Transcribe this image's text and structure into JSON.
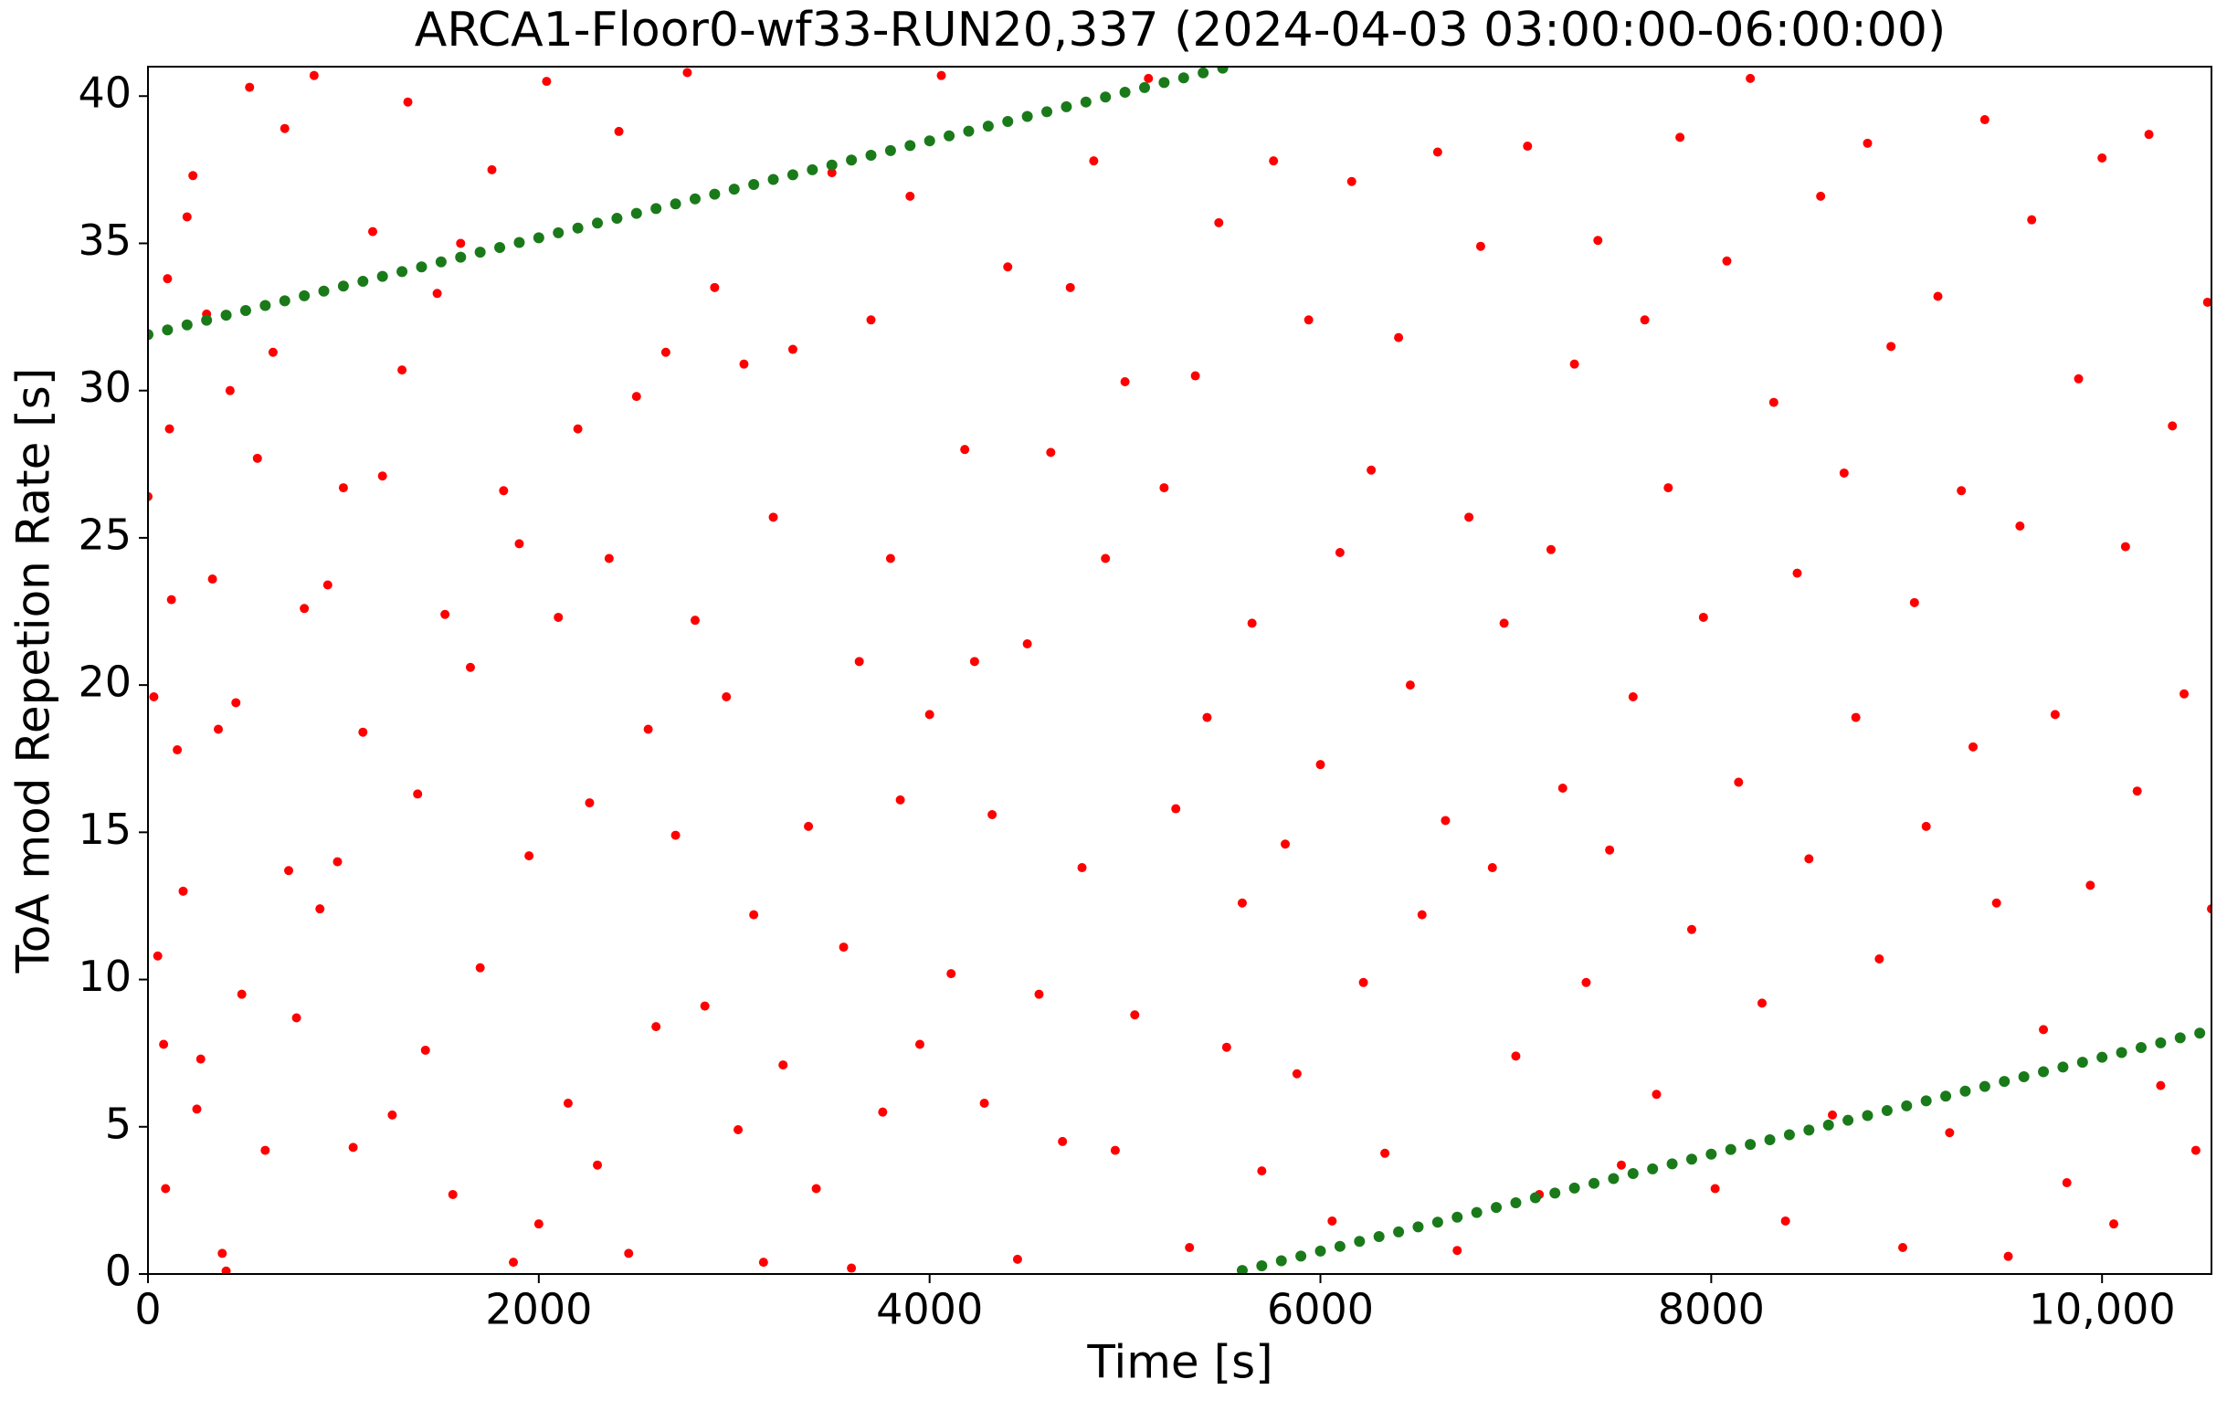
{
  "chart_data": {
    "type": "scatter",
    "title": "ARCA1-Floor0-wf33-RUN20,337 (2024-04-03 03:00:00-06:00:00)",
    "x_label": "Time [s]",
    "y_label": "ToA mod Repetion Rate [s]",
    "xlim": [
      0,
      10560
    ],
    "ylim": [
      0,
      41
    ],
    "xticks": [
      0,
      2000,
      4000,
      6000,
      8000,
      {
        "value": 10000,
        "label": "10,000"
      }
    ],
    "yticks": [
      0,
      5,
      10,
      15,
      20,
      25,
      30,
      35,
      40
    ],
    "grid": false,
    "series": [
      {
        "color": "#ff0000",
        "x": [
          0,
          30,
          50,
          80,
          90,
          100,
          110,
          120,
          150,
          180,
          200,
          230,
          250,
          270,
          300,
          330,
          360,
          380,
          400,
          420,
          450,
          480,
          520,
          560,
          600,
          640,
          700,
          720,
          760,
          800,
          850,
          880,
          920,
          970,
          1000,
          1050,
          1100,
          1150,
          1200,
          1250,
          1300,
          1330,
          1380,
          1420,
          1480,
          1520,
          1560,
          1600,
          1650,
          1700,
          1760,
          1820,
          1870,
          1900,
          1950,
          2000,
          2040,
          2100,
          2150,
          2200,
          2260,
          2300,
          2360,
          2410,
          2460,
          2500,
          2560,
          2600,
          2650,
          2700,
          2760,
          2800,
          2850,
          2900,
          2960,
          3020,
          3050,
          3100,
          3150,
          3200,
          3250,
          3300,
          3380,
          3420,
          3500,
          3560,
          3600,
          3640,
          3700,
          3760,
          3800,
          3850,
          3900,
          3950,
          4000,
          4060,
          4110,
          4180,
          4230,
          4280,
          4320,
          4400,
          4450,
          4500,
          4560,
          4620,
          4680,
          4720,
          4780,
          4840,
          4900,
          4950,
          5000,
          5050,
          5120,
          5200,
          5260,
          5330,
          5360,
          5420,
          5480,
          5520,
          5600,
          5650,
          5700,
          5760,
          5820,
          5880,
          5940,
          6000,
          6060,
          6100,
          6160,
          6220,
          6260,
          6330,
          6400,
          6460,
          6520,
          6600,
          6640,
          6700,
          6760,
          6820,
          6880,
          6940,
          7000,
          7060,
          7120,
          7180,
          7240,
          7300,
          7360,
          7420,
          7480,
          7540,
          7600,
          7660,
          7720,
          7780,
          7840,
          7900,
          7960,
          8020,
          8080,
          8140,
          8200,
          8260,
          8320,
          8380,
          8440,
          8500,
          8560,
          8620,
          8680,
          8740,
          8800,
          8860,
          8920,
          8980,
          9040,
          9100,
          9160,
          9220,
          9280,
          9340,
          9400,
          9460,
          9520,
          9580,
          9640,
          9700,
          9760,
          9820,
          9880,
          9940,
          10000,
          10060,
          10120,
          10180,
          10240,
          10300,
          10360,
          10420,
          10480,
          10540,
          10560
        ],
        "values": [
          26.4,
          19.6,
          10.8,
          7.8,
          2.9,
          33.8,
          28.7,
          22.9,
          17.8,
          13,
          35.9,
          37.3,
          5.6,
          7.3,
          32.6,
          23.6,
          18.5,
          0.7,
          0.1,
          30,
          19.4,
          9.5,
          40.3,
          27.7,
          4.2,
          31.3,
          38.9,
          13.7,
          8.7,
          22.6,
          40.7,
          12.4,
          23.4,
          14,
          26.7,
          4.3,
          18.4,
          35.4,
          27.1,
          5.4,
          30.7,
          39.8,
          16.3,
          7.6,
          33.3,
          22.4,
          2.7,
          35,
          20.6,
          10.4,
          37.5,
          26.6,
          0.4,
          24.8,
          14.2,
          1.7,
          40.5,
          22.3,
          5.8,
          28.7,
          16,
          3.7,
          24.3,
          38.8,
          0.7,
          29.8,
          18.5,
          8.4,
          31.3,
          14.9,
          40.8,
          22.2,
          9.1,
          33.5,
          19.6,
          4.9,
          30.9,
          12.2,
          0.4,
          25.7,
          7.1,
          31.4,
          15.2,
          2.9,
          37.4,
          11.1,
          0.2,
          20.8,
          32.4,
          5.5,
          24.3,
          16.1,
          36.6,
          7.8,
          19,
          40.7,
          10.2,
          28,
          20.8,
          5.8,
          15.6,
          34.2,
          0.5,
          21.4,
          9.5,
          27.9,
          4.5,
          33.5,
          13.8,
          37.8,
          24.3,
          4.2,
          30.3,
          8.8,
          40.6,
          26.7,
          15.8,
          0.9,
          30.5,
          18.9,
          35.7,
          7.7,
          12.6,
          22.1,
          3.5,
          37.8,
          14.6,
          6.8,
          32.4,
          17.3,
          1.8,
          24.5,
          37.1,
          9.9,
          27.3,
          4.1,
          31.8,
          20,
          12.2,
          38.1,
          15.4,
          0.8,
          25.7,
          34.9,
          13.8,
          22.1,
          7.4,
          38.3,
          2.7,
          24.6,
          16.5,
          30.9,
          9.9,
          35.1,
          14.4,
          3.7,
          19.6,
          32.4,
          6.1,
          26.7,
          38.6,
          11.7,
          22.3,
          2.9,
          34.4,
          16.7,
          40.6,
          9.2,
          29.6,
          1.8,
          23.8,
          14.1,
          36.6,
          5.4,
          27.2,
          18.9,
          38.4,
          10.7,
          31.5,
          0.9,
          22.8,
          15.2,
          33.2,
          4.8,
          26.6,
          17.9,
          39.2,
          12.6,
          0.6,
          25.4,
          35.8,
          8.3,
          19,
          3.1,
          30.4,
          13.2,
          37.9,
          1.7,
          24.7,
          16.4,
          38.7,
          6.4,
          28.8,
          19.7,
          4.2,
          33,
          12.4
        ]
      },
      {
        "color": "#1a7a1a",
        "x": [
          0,
          100,
          200,
          300,
          400,
          500,
          600,
          700,
          800,
          900,
          1000,
          1100,
          1200,
          1300,
          1400,
          1500,
          1600,
          1700,
          1800,
          1900,
          2000,
          2100,
          2200,
          2300,
          2400,
          2500,
          2600,
          2700,
          2800,
          2900,
          3000,
          3100,
          3200,
          3300,
          3400,
          3500,
          3600,
          3700,
          3800,
          3900,
          4000,
          4100,
          4200,
          4300,
          4400,
          4500,
          4600,
          4700,
          4800,
          4900,
          5000,
          5100,
          5200,
          5300,
          5400,
          5500,
          5600,
          5700,
          5800,
          5900,
          6000,
          6100,
          6200,
          6300,
          6400,
          6500,
          6600,
          6700,
          6800,
          6900,
          7000,
          7100,
          7200,
          7300,
          7400,
          7500,
          7600,
          7700,
          7800,
          7900,
          8000,
          8100,
          8200,
          8300,
          8400,
          8500,
          8600,
          8700,
          8800,
          8900,
          9000,
          9100,
          9200,
          9300,
          9400,
          9500,
          9600,
          9700,
          9800,
          9900,
          10000,
          10100,
          10200,
          10300,
          10400,
          10500
        ],
        "values": [
          31.9,
          32.06,
          32.23,
          32.39,
          32.56,
          32.72,
          32.89,
          33.05,
          33.22,
          33.38,
          33.55,
          33.71,
          33.88,
          34.04,
          34.2,
          34.37,
          34.53,
          34.7,
          34.86,
          35.03,
          35.19,
          35.36,
          35.52,
          35.69,
          35.85,
          36.02,
          36.18,
          36.34,
          36.51,
          36.67,
          36.84,
          37,
          37.17,
          37.33,
          37.5,
          37.66,
          37.83,
          37.99,
          38.15,
          38.32,
          38.48,
          38.65,
          38.81,
          38.98,
          39.14,
          39.31,
          39.47,
          39.64,
          39.8,
          39.97,
          40.13,
          40.29,
          40.46,
          40.62,
          40.79,
          40.95,
          0.12,
          0.28,
          0.45,
          0.61,
          0.78,
          0.94,
          1.11,
          1.27,
          1.43,
          1.6,
          1.76,
          1.93,
          2.09,
          2.26,
          2.42,
          2.59,
          2.75,
          2.92,
          3.08,
          3.24,
          3.41,
          3.57,
          3.74,
          3.9,
          4.07,
          4.23,
          4.4,
          4.56,
          4.73,
          4.89,
          5.06,
          5.22,
          5.38,
          5.55,
          5.71,
          5.88,
          6.04,
          6.21,
          6.37,
          6.54,
          6.7,
          6.87,
          7.03,
          7.19,
          7.36,
          7.52,
          7.69,
          7.85,
          8.02,
          8.18
        ]
      }
    ]
  }
}
